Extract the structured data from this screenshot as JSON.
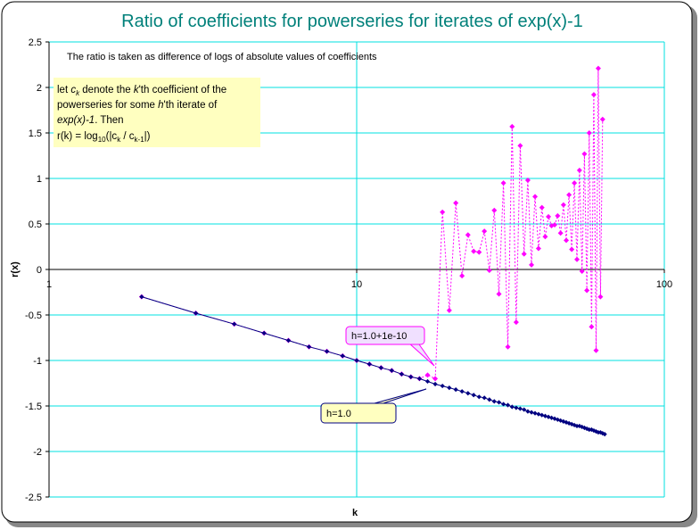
{
  "chart_data": {
    "type": "line",
    "title": "Ratio of coefficients for powerseries for iterates of exp(x)-1",
    "subtitle": "The ratio is taken as difference of logs of absolute values of coefficients",
    "note_lines": [
      [
        "let ",
        "c",
        "k",
        " denote the ",
        "k",
        "'th coefficient of the"
      ],
      [
        "powerseries for some ",
        "h",
        "'th iterate of"
      ],
      [
        "exp(x)-1",
        ". Then"
      ],
      [
        "r(k) = log",
        "10",
        "(|c",
        "k",
        " / c",
        "k-1",
        "|)"
      ]
    ],
    "x_label": "k",
    "y_label": "r(x)",
    "xscale": "log",
    "xlim": [
      1,
      100
    ],
    "xticks": [
      1,
      10,
      100
    ],
    "ylim": [
      -2.5,
      2.5
    ],
    "yticks": [
      -2.5,
      -2,
      -1.5,
      -1,
      -0.5,
      0,
      0.5,
      1,
      1.5,
      2,
      2.5
    ],
    "grid": true,
    "x": [
      2,
      3,
      4,
      5,
      6,
      7,
      8,
      9,
      10,
      11,
      12,
      13,
      14,
      15,
      16,
      17,
      18,
      19,
      20,
      21,
      22,
      23,
      24,
      25,
      26,
      27,
      28,
      29,
      30,
      31,
      32,
      33,
      34,
      35,
      36,
      37,
      38,
      39,
      40,
      41,
      42,
      43,
      44,
      45,
      46,
      47,
      48,
      49,
      50,
      51,
      52,
      53,
      54,
      55,
      56,
      57,
      58,
      59,
      60,
      61,
      62,
      63,
      64
    ],
    "series": [
      {
        "name": "h=1.0",
        "color": "#000080",
        "values": [
          -0.3,
          -0.48,
          -0.6,
          -0.7,
          -0.78,
          -0.85,
          -0.9,
          -0.95,
          -1.0,
          -1.04,
          -1.08,
          -1.11,
          -1.15,
          -1.18,
          -1.2,
          -1.23,
          -1.26,
          -1.28,
          -1.3,
          -1.32,
          -1.34,
          -1.36,
          -1.38,
          -1.4,
          -1.41,
          -1.43,
          -1.45,
          -1.46,
          -1.48,
          -1.49,
          -1.51,
          -1.52,
          -1.53,
          -1.54,
          -1.56,
          -1.57,
          -1.58,
          -1.59,
          -1.6,
          -1.61,
          -1.62,
          -1.63,
          -1.64,
          -1.65,
          -1.66,
          -1.67,
          -1.68,
          -1.69,
          -1.7,
          -1.71,
          -1.72,
          -1.72,
          -1.73,
          -1.74,
          -1.75,
          -1.76,
          -1.76,
          -1.77,
          -1.78,
          -1.79,
          -1.79,
          -1.8,
          -1.81
        ]
      },
      {
        "name": "h=1.0+1e-10",
        "color": "#ff00ff",
        "values": [
          -0.3,
          -0.48,
          -0.6,
          -0.7,
          -0.78,
          -0.85,
          -0.9,
          -0.95,
          -1.0,
          -1.04,
          -1.08,
          -1.11,
          -1.15,
          -1.18,
          -1.2,
          -1.16,
          -1.2,
          0.63,
          -0.45,
          0.73,
          -0.07,
          0.38,
          0.2,
          0.19,
          0.42,
          -0.01,
          0.65,
          -0.27,
          0.95,
          -0.85,
          1.57,
          -0.58,
          1.36,
          0.17,
          0.98,
          0.05,
          0.8,
          0.23,
          0.68,
          0.36,
          0.58,
          0.48,
          0.49,
          0.59,
          0.4,
          0.71,
          0.32,
          0.82,
          0.22,
          0.95,
          0.11,
          1.09,
          -0.02,
          1.27,
          -0.23,
          1.5,
          -0.63,
          1.92,
          -0.89,
          2.21,
          -0.3,
          1.65,
          null
        ]
      }
    ]
  }
}
